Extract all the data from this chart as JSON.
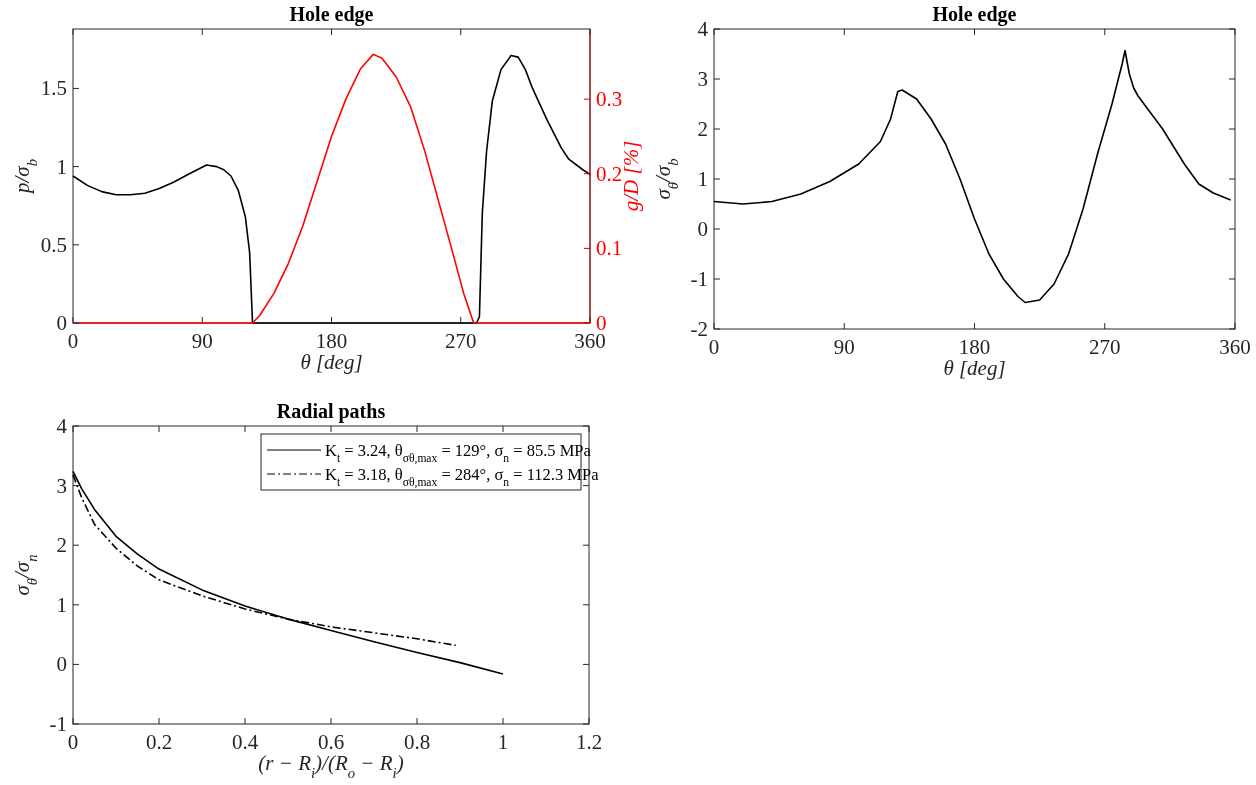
{
  "chart_data": [
    {
      "type": "line",
      "title": "Hole edge",
      "xlabel": "θ [deg]",
      "ylabel": "p/σ$_{b}$",
      "y2label": "g/D [%]",
      "xlim": [
        0,
        360
      ],
      "xticks": [
        0,
        90,
        180,
        270,
        360
      ],
      "ylim": [
        0,
        1.88
      ],
      "yticks": [
        0,
        0.5,
        1,
        1.5
      ],
      "y2lim": [
        0,
        0.394
      ],
      "y2ticks": [
        0,
        0.1,
        0.2,
        0.3
      ],
      "grid": false,
      "legend": false,
      "series": [
        {
          "color": "#000000",
          "x": [
            0,
            10,
            20,
            30,
            34,
            40,
            50,
            60,
            70,
            80,
            93,
            100,
            105,
            110,
            115,
            120,
            123,
            125,
            150,
            200,
            250,
            281,
            283,
            285,
            288,
            292,
            298,
            305,
            310,
            315,
            320,
            330,
            340,
            345,
            355,
            360
          ],
          "values": [
            0.94,
            0.88,
            0.84,
            0.82,
            0.82,
            0.82,
            0.83,
            0.86,
            0.9,
            0.95,
            1.01,
            1.0,
            0.98,
            0.94,
            0.85,
            0.68,
            0.45,
            0,
            0,
            0,
            0,
            0,
            0.04,
            0.7,
            1.1,
            1.42,
            1.62,
            1.71,
            1.7,
            1.62,
            1.5,
            1.3,
            1.12,
            1.05,
            0.98,
            0.95
          ]
        },
        {
          "color": "#ff0000",
          "axis": "y2",
          "x": [
            0,
            60,
            125,
            130,
            140,
            150,
            160,
            170,
            180,
            190,
            200,
            209,
            215,
            225,
            235,
            245,
            255,
            265,
            272,
            279,
            320,
            360
          ],
          "values": [
            0,
            0,
            0,
            0.01,
            0.04,
            0.08,
            0.13,
            0.19,
            0.25,
            0.3,
            0.34,
            0.36,
            0.355,
            0.33,
            0.29,
            0.23,
            0.16,
            0.09,
            0.04,
            0,
            0,
            0
          ]
        }
      ]
    },
    {
      "type": "line",
      "title": "Hole edge",
      "xlabel": "θ [deg]",
      "ylabel": "σ$_{θ}$/σ$_{b}$",
      "xlim": [
        0,
        360
      ],
      "xticks": [
        0,
        90,
        180,
        270,
        360
      ],
      "ylim": [
        -2,
        4
      ],
      "yticks": [
        -2,
        -1,
        0,
        1,
        2,
        3,
        4
      ],
      "grid": false,
      "legend": false,
      "series": [
        {
          "color": "#000000",
          "x": [
            0,
            20,
            40,
            60,
            80,
            100,
            115,
            122,
            127,
            130,
            140,
            150,
            160,
            170,
            180,
            190,
            200,
            210,
            215,
            225,
            235,
            245,
            255,
            265,
            275,
            282,
            284,
            287,
            290,
            293,
            310,
            325,
            335,
            345,
            357
          ],
          "values": [
            0.55,
            0.5,
            0.55,
            0.7,
            0.95,
            1.3,
            1.75,
            2.2,
            2.75,
            2.78,
            2.6,
            2.2,
            1.7,
            1.0,
            0.2,
            -0.5,
            -1.0,
            -1.35,
            -1.47,
            -1.42,
            -1.1,
            -0.5,
            0.4,
            1.5,
            2.5,
            3.3,
            3.57,
            3.1,
            2.82,
            2.66,
            2.0,
            1.3,
            0.9,
            0.72,
            0.58
          ]
        }
      ]
    },
    {
      "type": "line",
      "title": "Radial paths",
      "xlabel": "(r − R$_{i}$)/(R$_{o}$ − R$_{i}$)",
      "ylabel": "σ$_{θ}$/σ$_{n}$",
      "xlim": [
        0,
        1.2
      ],
      "xticks": [
        0,
        0.2,
        0.4,
        0.6,
        0.8,
        1,
        1.2
      ],
      "ylim": [
        -1,
        4
      ],
      "yticks": [
        -1,
        0,
        1,
        2,
        3,
        4
      ],
      "grid": false,
      "legend": "top right",
      "series": [
        {
          "name": "K$_{t}$ = 3.24, θ$_{σθ,max}$ = 129°, σ$_{n}$ = 85.5 MPa",
          "color": "#000000",
          "line_style": "solid",
          "x": [
            0,
            0.02,
            0.05,
            0.1,
            0.15,
            0.2,
            0.3,
            0.4,
            0.5,
            0.6,
            0.7,
            0.8,
            0.9,
            1.0
          ],
          "values": [
            3.24,
            2.95,
            2.6,
            2.15,
            1.85,
            1.6,
            1.25,
            0.98,
            0.76,
            0.57,
            0.38,
            0.2,
            0.03,
            -0.16
          ]
        },
        {
          "name": "K$_{t}$ = 3.18, θ$_{σθ,max}$ = 284°, σ$_{n}$ = 112.3 MPa",
          "color": "#000000",
          "line_style": "dashdot",
          "x": [
            0,
            0.02,
            0.05,
            0.1,
            0.15,
            0.2,
            0.3,
            0.4,
            0.5,
            0.6,
            0.7,
            0.8,
            0.89
          ],
          "values": [
            3.18,
            2.8,
            2.35,
            1.95,
            1.65,
            1.42,
            1.15,
            0.93,
            0.76,
            0.63,
            0.53,
            0.43,
            0.32
          ]
        }
      ]
    }
  ]
}
